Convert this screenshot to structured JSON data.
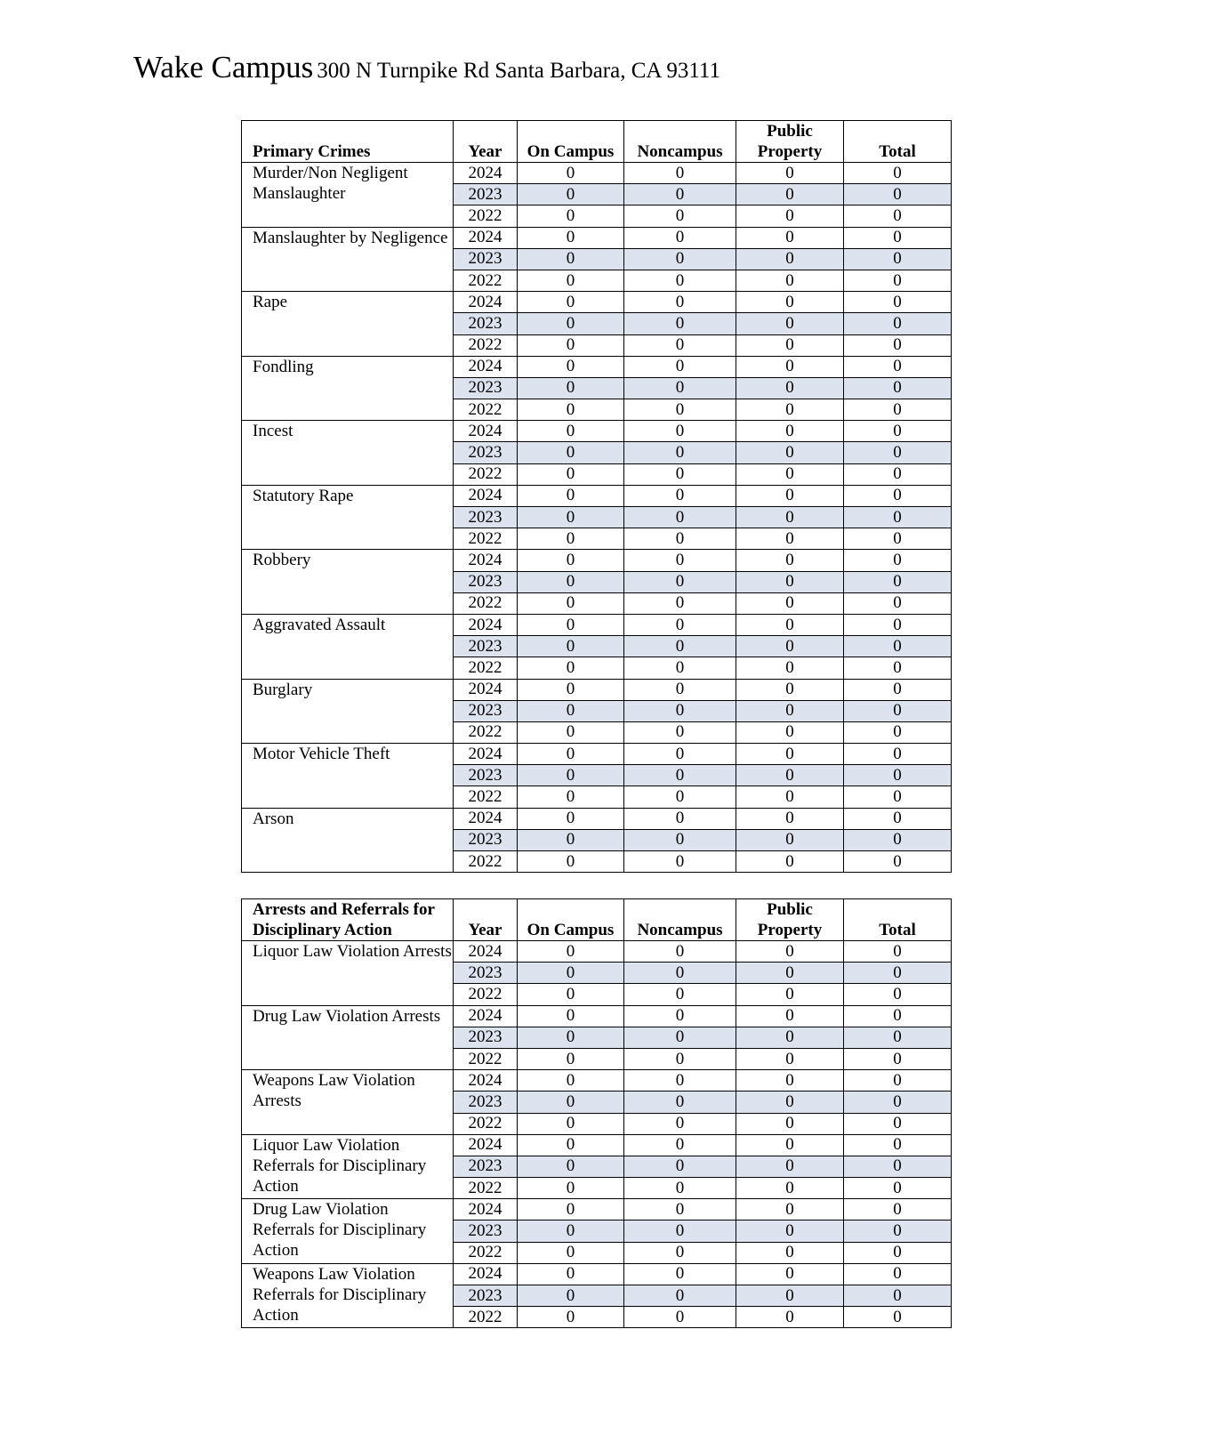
{
  "header": {
    "campus": "Wake Campus",
    "address": "300 N Turnpike Rd Santa Barbara, CA 93111"
  },
  "shade_color": "#dce3ef",
  "tables": [
    {
      "columns": [
        "Primary Crimes",
        "Year",
        "On Campus",
        "Noncampus",
        "Public Property",
        "Total"
      ],
      "groups": [
        {
          "label": "Murder/Non Negligent Manslaughter",
          "rows": [
            [
              "2024",
              "0",
              "0",
              "0",
              "0"
            ],
            [
              "2023",
              "0",
              "0",
              "0",
              "0"
            ],
            [
              "2022",
              "0",
              "0",
              "0",
              "0"
            ]
          ]
        },
        {
          "label": "Manslaughter by Negligence",
          "rows": [
            [
              "2024",
              "0",
              "0",
              "0",
              "0"
            ],
            [
              "2023",
              "0",
              "0",
              "0",
              "0"
            ],
            [
              "2022",
              "0",
              "0",
              "0",
              "0"
            ]
          ]
        },
        {
          "label": "Rape",
          "rows": [
            [
              "2024",
              "0",
              "0",
              "0",
              "0"
            ],
            [
              "2023",
              "0",
              "0",
              "0",
              "0"
            ],
            [
              "2022",
              "0",
              "0",
              "0",
              "0"
            ]
          ]
        },
        {
          "label": "Fondling",
          "rows": [
            [
              "2024",
              "0",
              "0",
              "0",
              "0"
            ],
            [
              "2023",
              "0",
              "0",
              "0",
              "0"
            ],
            [
              "2022",
              "0",
              "0",
              "0",
              "0"
            ]
          ]
        },
        {
          "label": "Incest",
          "rows": [
            [
              "2024",
              "0",
              "0",
              "0",
              "0"
            ],
            [
              "2023",
              "0",
              "0",
              "0",
              "0"
            ],
            [
              "2022",
              "0",
              "0",
              "0",
              "0"
            ]
          ]
        },
        {
          "label": "Statutory Rape",
          "rows": [
            [
              "2024",
              "0",
              "0",
              "0",
              "0"
            ],
            [
              "2023",
              "0",
              "0",
              "0",
              "0"
            ],
            [
              "2022",
              "0",
              "0",
              "0",
              "0"
            ]
          ]
        },
        {
          "label": "Robbery",
          "rows": [
            [
              "2024",
              "0",
              "0",
              "0",
              "0"
            ],
            [
              "2023",
              "0",
              "0",
              "0",
              "0"
            ],
            [
              "2022",
              "0",
              "0",
              "0",
              "0"
            ]
          ]
        },
        {
          "label": "Aggravated Assault",
          "rows": [
            [
              "2024",
              "0",
              "0",
              "0",
              "0"
            ],
            [
              "2023",
              "0",
              "0",
              "0",
              "0"
            ],
            [
              "2022",
              "0",
              "0",
              "0",
              "0"
            ]
          ]
        },
        {
          "label": "Burglary",
          "rows": [
            [
              "2024",
              "0",
              "0",
              "0",
              "0"
            ],
            [
              "2023",
              "0",
              "0",
              "0",
              "0"
            ],
            [
              "2022",
              "0",
              "0",
              "0",
              "0"
            ]
          ]
        },
        {
          "label": "Motor Vehicle Theft",
          "rows": [
            [
              "2024",
              "0",
              "0",
              "0",
              "0"
            ],
            [
              "2023",
              "0",
              "0",
              "0",
              "0"
            ],
            [
              "2022",
              "0",
              "0",
              "0",
              "0"
            ]
          ]
        },
        {
          "label": "Arson",
          "rows": [
            [
              "2024",
              "0",
              "0",
              "0",
              "0"
            ],
            [
              "2023",
              "0",
              "0",
              "0",
              "0"
            ],
            [
              "2022",
              "0",
              "0",
              "0",
              "0"
            ]
          ]
        }
      ]
    },
    {
      "columns": [
        "Arrests and Referrals for Disciplinary Action",
        "Year",
        "On Campus",
        "Noncampus",
        "Public Property",
        "Total"
      ],
      "groups": [
        {
          "label": "Liquor Law Violation Arrests",
          "rows": [
            [
              "2024",
              "0",
              "0",
              "0",
              "0"
            ],
            [
              "2023",
              "0",
              "0",
              "0",
              "0"
            ],
            [
              "2022",
              "0",
              "0",
              "0",
              "0"
            ]
          ]
        },
        {
          "label": "Drug Law Violation Arrests",
          "rows": [
            [
              "2024",
              "0",
              "0",
              "0",
              "0"
            ],
            [
              "2023",
              "0",
              "0",
              "0",
              "0"
            ],
            [
              "2022",
              "0",
              "0",
              "0",
              "0"
            ]
          ]
        },
        {
          "label": "Weapons Law Violation Arrests",
          "rows": [
            [
              "2024",
              "0",
              "0",
              "0",
              "0"
            ],
            [
              "2023",
              "0",
              "0",
              "0",
              "0"
            ],
            [
              "2022",
              "0",
              "0",
              "0",
              "0"
            ]
          ]
        },
        {
          "label": "Liquor Law Violation Referrals for Disciplinary Action",
          "rows": [
            [
              "2024",
              "0",
              "0",
              "0",
              "0"
            ],
            [
              "2023",
              "0",
              "0",
              "0",
              "0"
            ],
            [
              "2022",
              "0",
              "0",
              "0",
              "0"
            ]
          ]
        },
        {
          "label": "Drug Law Violation Referrals for Disciplinary Action",
          "rows": [
            [
              "2024",
              "0",
              "0",
              "0",
              "0"
            ],
            [
              "2023",
              "0",
              "0",
              "0",
              "0"
            ],
            [
              "2022",
              "0",
              "0",
              "0",
              "0"
            ]
          ]
        },
        {
          "label": "Weapons Law Violation Referrals for Disciplinary Action",
          "rows": [
            [
              "2024",
              "0",
              "0",
              "0",
              "0"
            ],
            [
              "2023",
              "0",
              "0",
              "0",
              "0"
            ],
            [
              "2022",
              "0",
              "0",
              "0",
              "0"
            ]
          ]
        }
      ]
    }
  ]
}
